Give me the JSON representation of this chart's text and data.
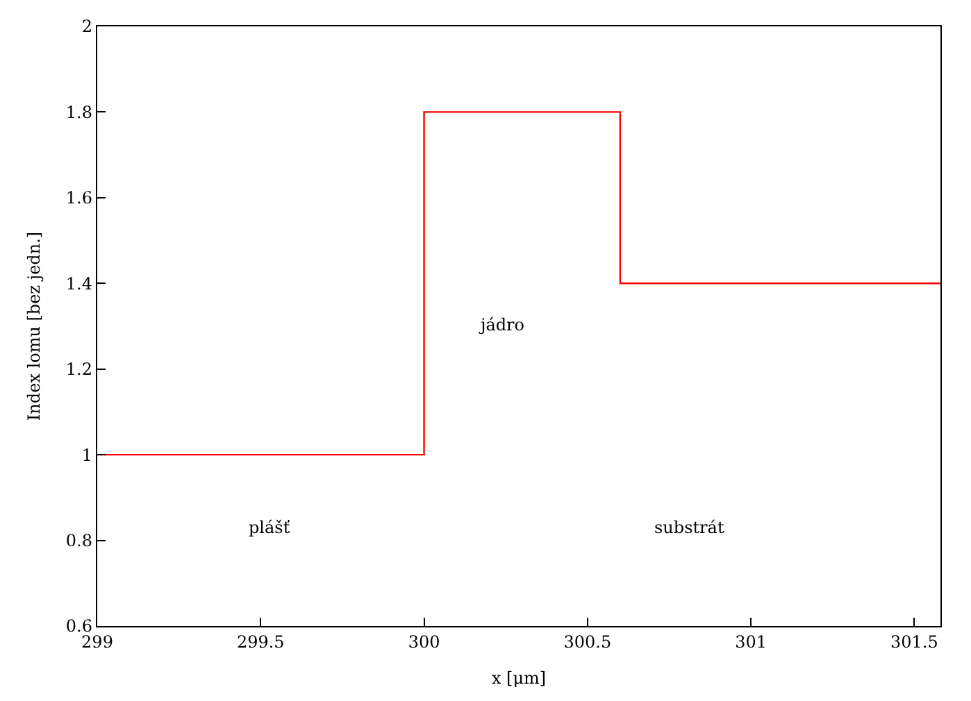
{
  "chart_data": {
    "type": "step",
    "xlabel": "x [μm]",
    "ylabel": "Index lomu [bez jedn.]",
    "x": [
      299,
      300,
      300.6,
      301.58
    ],
    "series": [
      {
        "color": "#ff0000",
        "values": [
          1,
          1.8,
          1.4,
          1.4
        ]
      }
    ],
    "xlim": [
      299,
      301.58
    ],
    "xticks": [
      299,
      299.5,
      300,
      300.5,
      301,
      301.5
    ],
    "ylim": [
      0.6,
      2
    ],
    "yticks": [
      0.6,
      0.8,
      1,
      1.2,
      1.4,
      1.6,
      1.8,
      2
    ],
    "annotations": [
      "plášť",
      "jádro",
      "substrát"
    ],
    "marker": "none",
    "line_style": "solid"
  }
}
